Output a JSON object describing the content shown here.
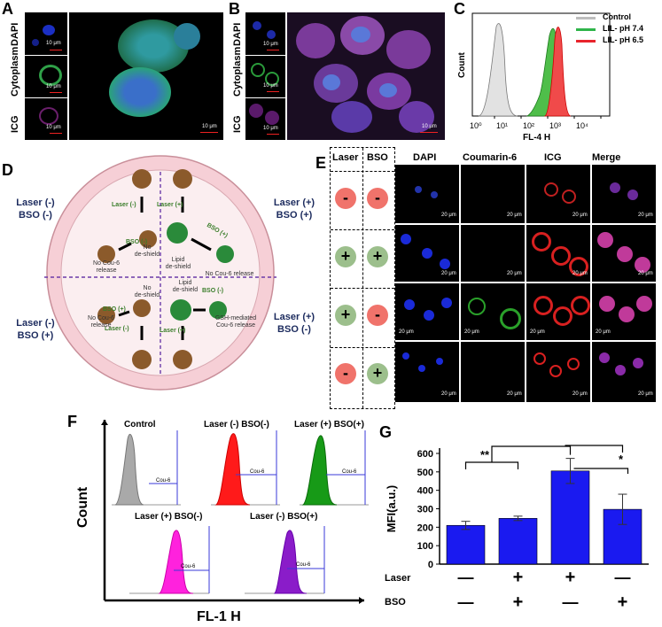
{
  "panels": {
    "A": "A",
    "B": "B",
    "C": "C",
    "D": "D",
    "E": "E",
    "F": "F",
    "G": "G"
  },
  "micro_A": {
    "dapi": "DAPI",
    "cyto": "Cytoplasm",
    "icg": "ICG",
    "scale_small": "10 μm",
    "scale_big": "10 μm"
  },
  "micro_B": {
    "dapi": "DAPI",
    "cyto": "Cytoplasm",
    "icg": "ICG",
    "scale_small": "10 μm",
    "scale_big": "10 μm"
  },
  "flowC": {
    "ylabel": "Count",
    "xlabel": "FL-4 H",
    "ticks": [
      "10⁰",
      "10¹",
      "10²",
      "10³",
      "10⁴"
    ],
    "legend": [
      {
        "label": "Control",
        "color": "#bdbdbd"
      },
      {
        "label": "LIL- pH 7.4",
        "color": "#2fb44a"
      },
      {
        "label": "LIL- pH 6.5",
        "color": "#e8242c"
      }
    ]
  },
  "schemeD": {
    "q_tl": "Laser (-)\nBSO (-)",
    "q_tr": "Laser (+)\nBSO (+)",
    "q_bl": "Laser (-)\nBSO (+)",
    "q_br": "Laser (+)\nBSO (-)",
    "laser_minus": "Laser (-)",
    "laser_plus": "Laser (+)",
    "bso_minus": "BSO (-)",
    "bso_plus": "BSO (+)",
    "no_deshield": "No\nde-shield",
    "lipid_deshield": "Lipid\nde-shield",
    "no_cou_release": "No Cou-6\nrelease",
    "no_cou_release_one": "No Cou-6 release",
    "gsh": "GSH-mediated\nCou-6 release"
  },
  "gridE": {
    "headers": {
      "laser": "Laser",
      "bso": "BSO",
      "dapi": "DAPI",
      "cou": "Coumarin-6",
      "icg": "ICG",
      "merge": "Merge"
    },
    "rows": [
      {
        "laser": "-",
        "bso": "-"
      },
      {
        "laser": "+",
        "bso": "+"
      },
      {
        "laser": "+",
        "bso": "-"
      },
      {
        "laser": "-",
        "bso": "+"
      }
    ],
    "scale": "20 μm"
  },
  "flowF": {
    "ylabel": "Count",
    "xlabel": "FL-1 H",
    "gate": "Cou-6",
    "hists": [
      {
        "title": "Control",
        "color": "#a9a9a9"
      },
      {
        "title": "Laser (-) BSO(-)",
        "color": "#ff1a1a"
      },
      {
        "title": "Laser (+) BSO(+)",
        "color": "#179a17"
      },
      {
        "title": "Laser (+) BSO(-)",
        "color": "#ff22dd"
      },
      {
        "title": "Laser (-) BSO(+)",
        "color": "#8a1cc9"
      }
    ]
  },
  "chart_data": {
    "type": "bar",
    "ylabel": "MFI(a.u.)",
    "ylim": [
      0,
      600
    ],
    "yticks": [
      0,
      100,
      200,
      300,
      400,
      500,
      600
    ],
    "categories": [
      "Laser - / BSO -",
      "Laser + / BSO +",
      "Laser + / BSO -",
      "Laser - / BSO +"
    ],
    "values": [
      210,
      248,
      505,
      297
    ],
    "errors": [
      22,
      12,
      68,
      82
    ],
    "color": "#1a1af0",
    "row_labels": [
      "Laser",
      "BSO"
    ],
    "laser": [
      "—",
      "+",
      "+",
      "—"
    ],
    "bso": [
      "—",
      "+",
      "—",
      "+"
    ],
    "sig": [
      "**",
      "*"
    ]
  }
}
